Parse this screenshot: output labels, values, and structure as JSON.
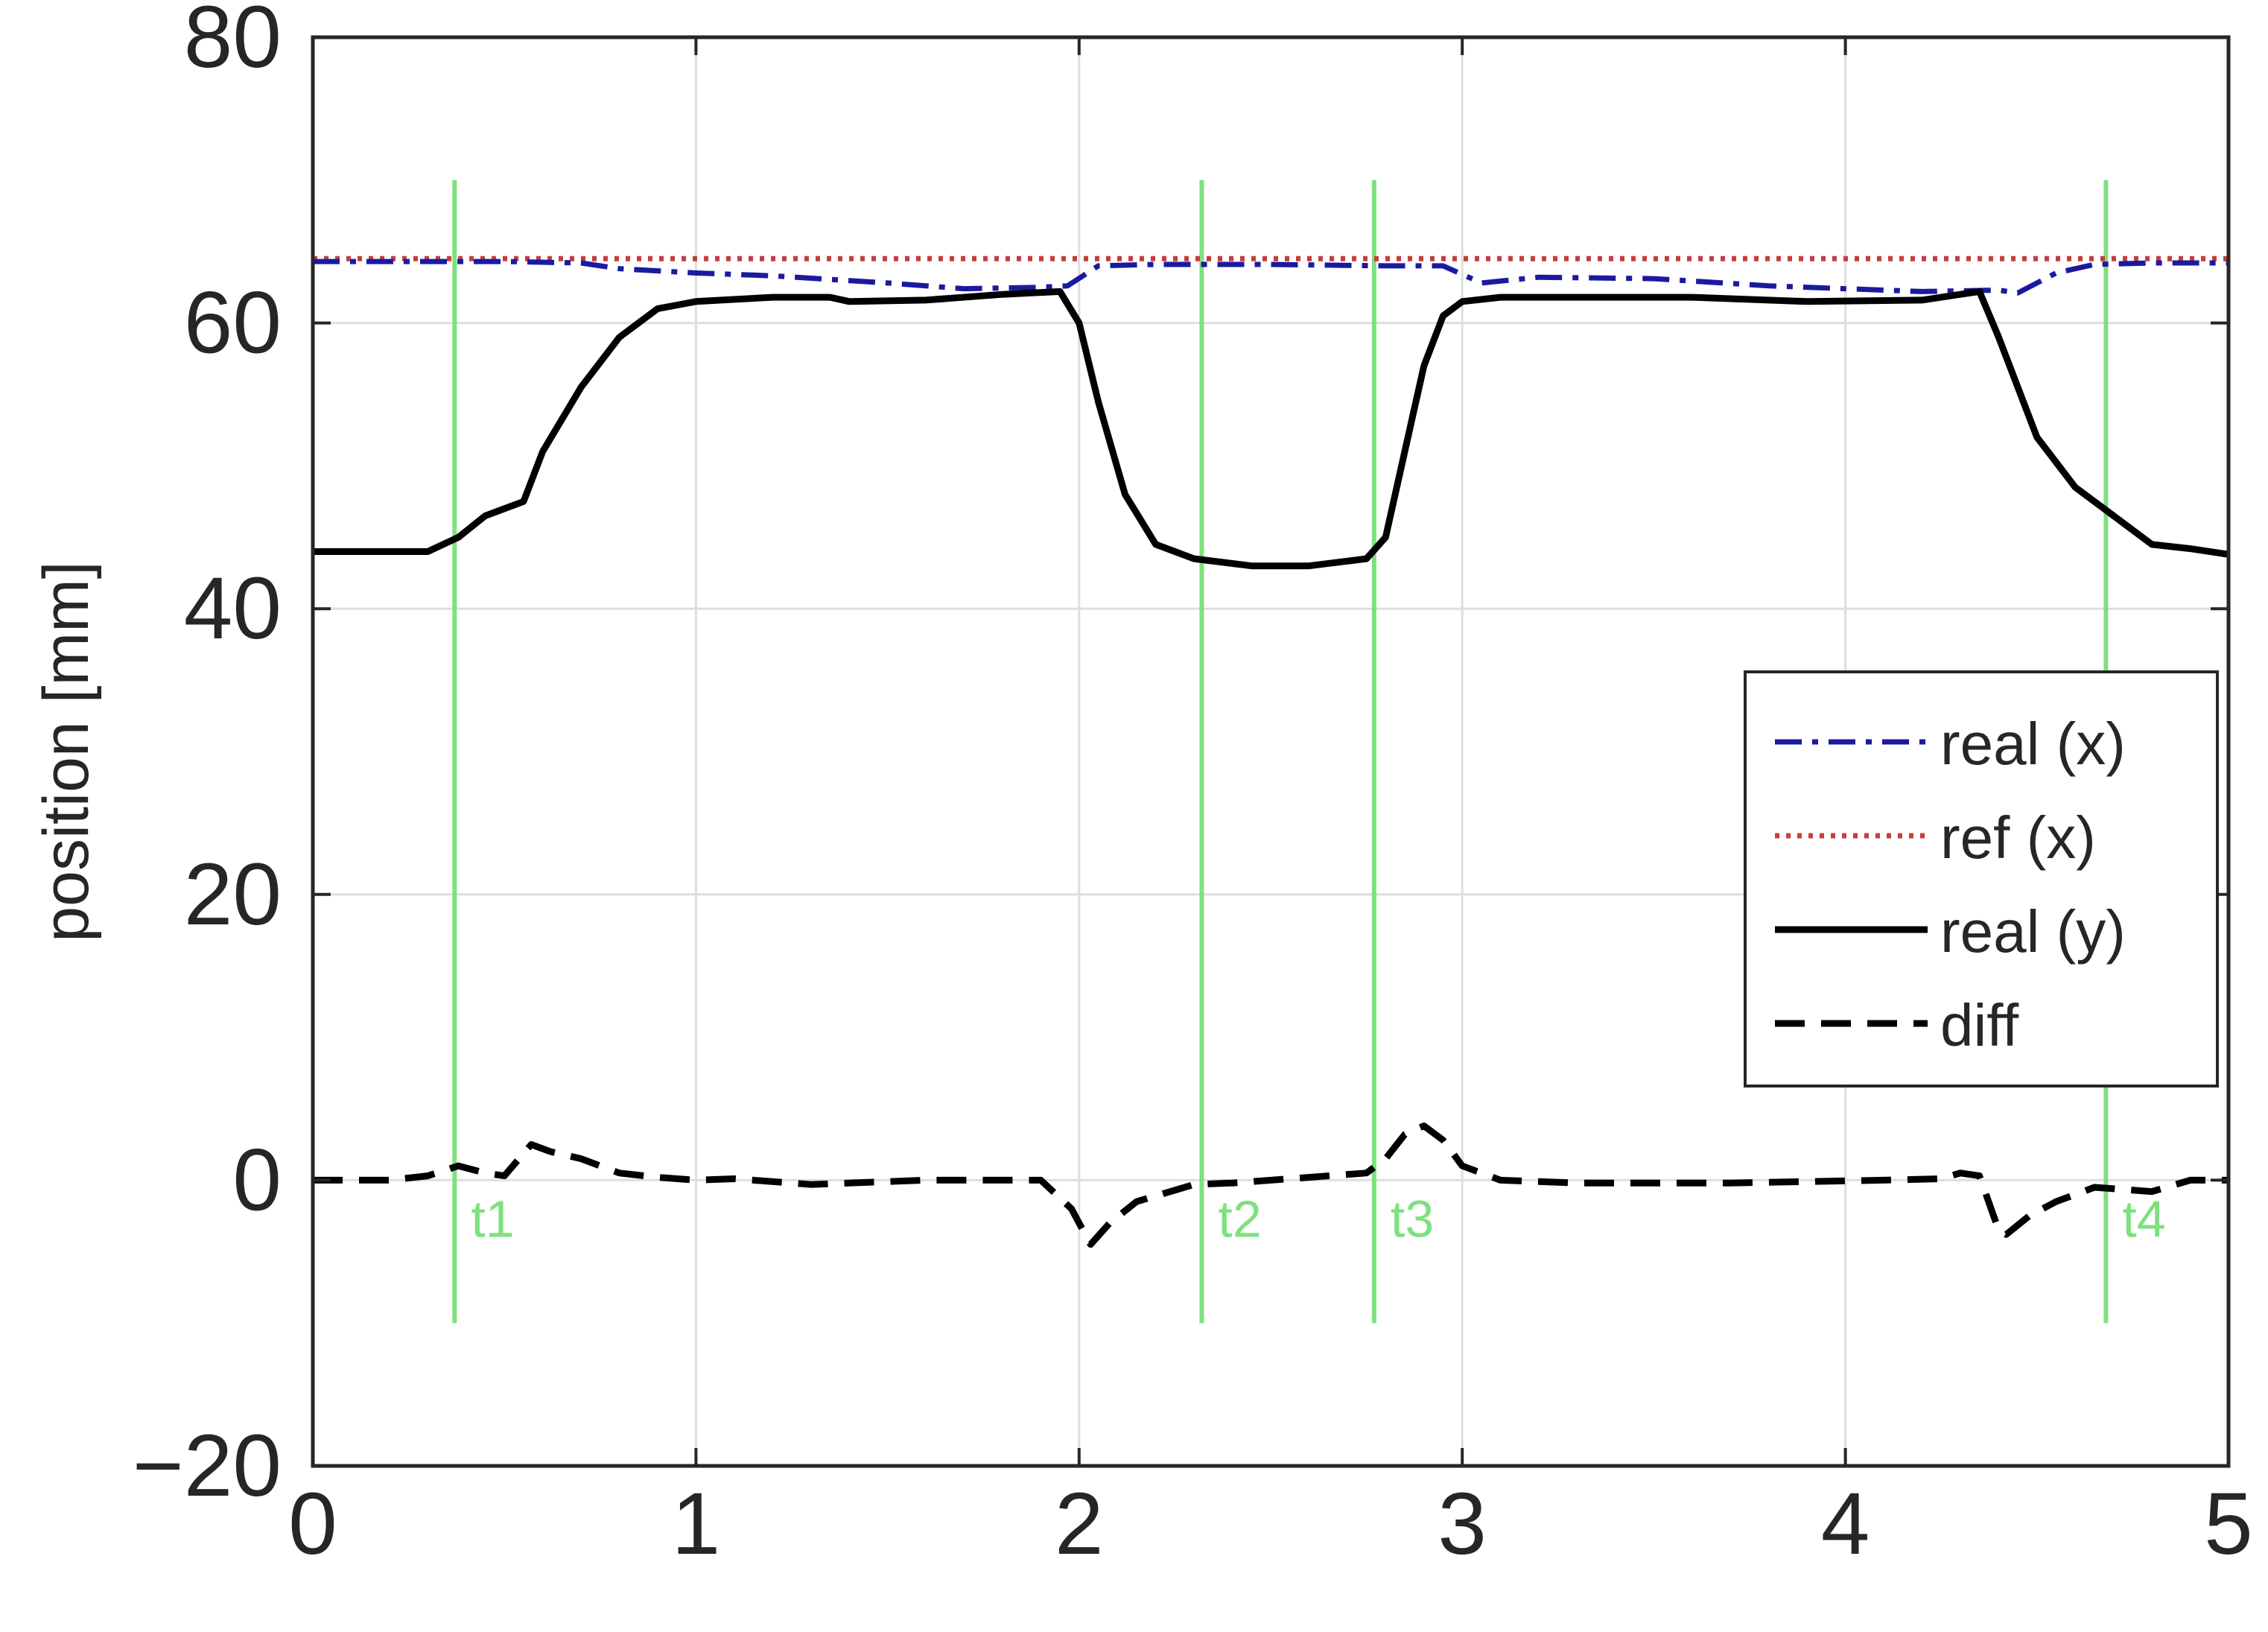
{
  "chart_data": {
    "type": "line",
    "title": "",
    "xlabel": "",
    "ylabel": "position [mm]",
    "xlim": [
      0,
      5
    ],
    "ylim": [
      -20,
      80
    ],
    "xticks": [
      0,
      1,
      2,
      3,
      4,
      5
    ],
    "yticks": [
      -20,
      0,
      20,
      40,
      60,
      80
    ],
    "xtick_labels": [
      "0",
      "1",
      "2",
      "3",
      "4",
      "5"
    ],
    "ytick_labels": [
      "−20",
      "0",
      "20",
      "40",
      "60",
      "80"
    ],
    "grid": true,
    "legend_position": "right, middle",
    "series": [
      {
        "name": "real (x)",
        "color": "#1a1aa0",
        "style": "dashdot",
        "x": [
          0,
          0.5,
          0.7,
          0.8,
          1.0,
          1.2,
          1.5,
          1.7,
          1.9,
          1.97,
          2.05,
          2.2,
          2.5,
          2.8,
          2.95,
          3.05,
          3.2,
          3.5,
          3.8,
          4.0,
          4.2,
          4.4,
          4.45,
          4.55,
          4.65,
          4.8,
          5.0
        ],
        "y": [
          64.3,
          64.3,
          64.2,
          63.8,
          63.5,
          63.3,
          62.8,
          62.4,
          62.5,
          62.6,
          64.0,
          64.1,
          64.1,
          64.0,
          64.0,
          62.8,
          63.2,
          63.1,
          62.6,
          62.4,
          62.2,
          62.3,
          62.1,
          63.5,
          64.1,
          64.2,
          64.2
        ]
      },
      {
        "name": "ref (x)",
        "color": "#c83c3c",
        "style": "dotted",
        "x": [
          0,
          5
        ],
        "y": [
          64.5,
          64.5
        ]
      },
      {
        "name": "real (y)",
        "color": "#000000",
        "style": "solid",
        "x": [
          0,
          0.25,
          0.3,
          0.38,
          0.45,
          0.5,
          0.55,
          0.6,
          0.7,
          0.8,
          0.9,
          1.0,
          1.2,
          1.35,
          1.4,
          1.6,
          1.8,
          1.95,
          2.0,
          2.05,
          2.12,
          2.2,
          2.3,
          2.45,
          2.6,
          2.75,
          2.8,
          2.85,
          2.9,
          2.95,
          3.0,
          3.1,
          3.3,
          3.6,
          3.9,
          4.2,
          4.3,
          4.35,
          4.4,
          4.5,
          4.6,
          4.7,
          4.8,
          4.9,
          5.0
        ],
        "y": [
          44.0,
          44.0,
          44.0,
          45.0,
          46.5,
          47.0,
          47.5,
          51.0,
          55.5,
          59.0,
          61.0,
          61.5,
          61.8,
          61.8,
          61.5,
          61.6,
          62.0,
          62.2,
          60.0,
          54.5,
          48.0,
          44.5,
          43.5,
          43.0,
          43.0,
          43.5,
          45.0,
          51.0,
          57.0,
          60.5,
          61.5,
          61.8,
          61.8,
          61.8,
          61.5,
          61.6,
          62.0,
          62.2,
          59.0,
          52.0,
          48.5,
          46.5,
          44.5,
          44.2,
          43.8
        ]
      },
      {
        "name": "diff",
        "color": "#000000",
        "style": "dashed",
        "x": [
          0,
          0.2,
          0.3,
          0.38,
          0.45,
          0.5,
          0.57,
          0.62,
          0.7,
          0.8,
          0.9,
          1.0,
          1.1,
          1.3,
          1.6,
          1.9,
          1.98,
          2.03,
          2.08,
          2.15,
          2.3,
          2.4,
          2.6,
          2.75,
          2.8,
          2.85,
          2.9,
          2.95,
          3.0,
          3.1,
          3.3,
          3.7,
          4.1,
          4.25,
          4.3,
          4.35,
          4.4,
          4.42,
          4.48,
          4.55,
          4.65,
          4.8,
          4.9,
          5.0
        ],
        "y": [
          0.0,
          0.0,
          0.3,
          1.0,
          0.5,
          0.3,
          2.5,
          2.0,
          1.5,
          0.5,
          0.2,
          0.0,
          0.1,
          -0.3,
          0.0,
          0.0,
          -2.0,
          -4.5,
          -3.0,
          -1.5,
          -0.3,
          -0.2,
          0.2,
          0.5,
          1.5,
          3.2,
          3.8,
          2.8,
          1.0,
          0.0,
          -0.2,
          -0.2,
          0.0,
          0.1,
          0.5,
          0.3,
          -3.5,
          -3.8,
          -2.5,
          -1.5,
          -0.5,
          -0.8,
          0.0,
          0.0
        ]
      }
    ],
    "event_markers": {
      "color": "#7fe07f",
      "y_range": [
        -10,
        70
      ],
      "items": [
        {
          "label": "t1",
          "x": 0.37
        },
        {
          "label": "t2",
          "x": 2.32
        },
        {
          "label": "t3",
          "x": 2.77
        },
        {
          "label": "t4",
          "x": 4.68
        }
      ]
    }
  }
}
